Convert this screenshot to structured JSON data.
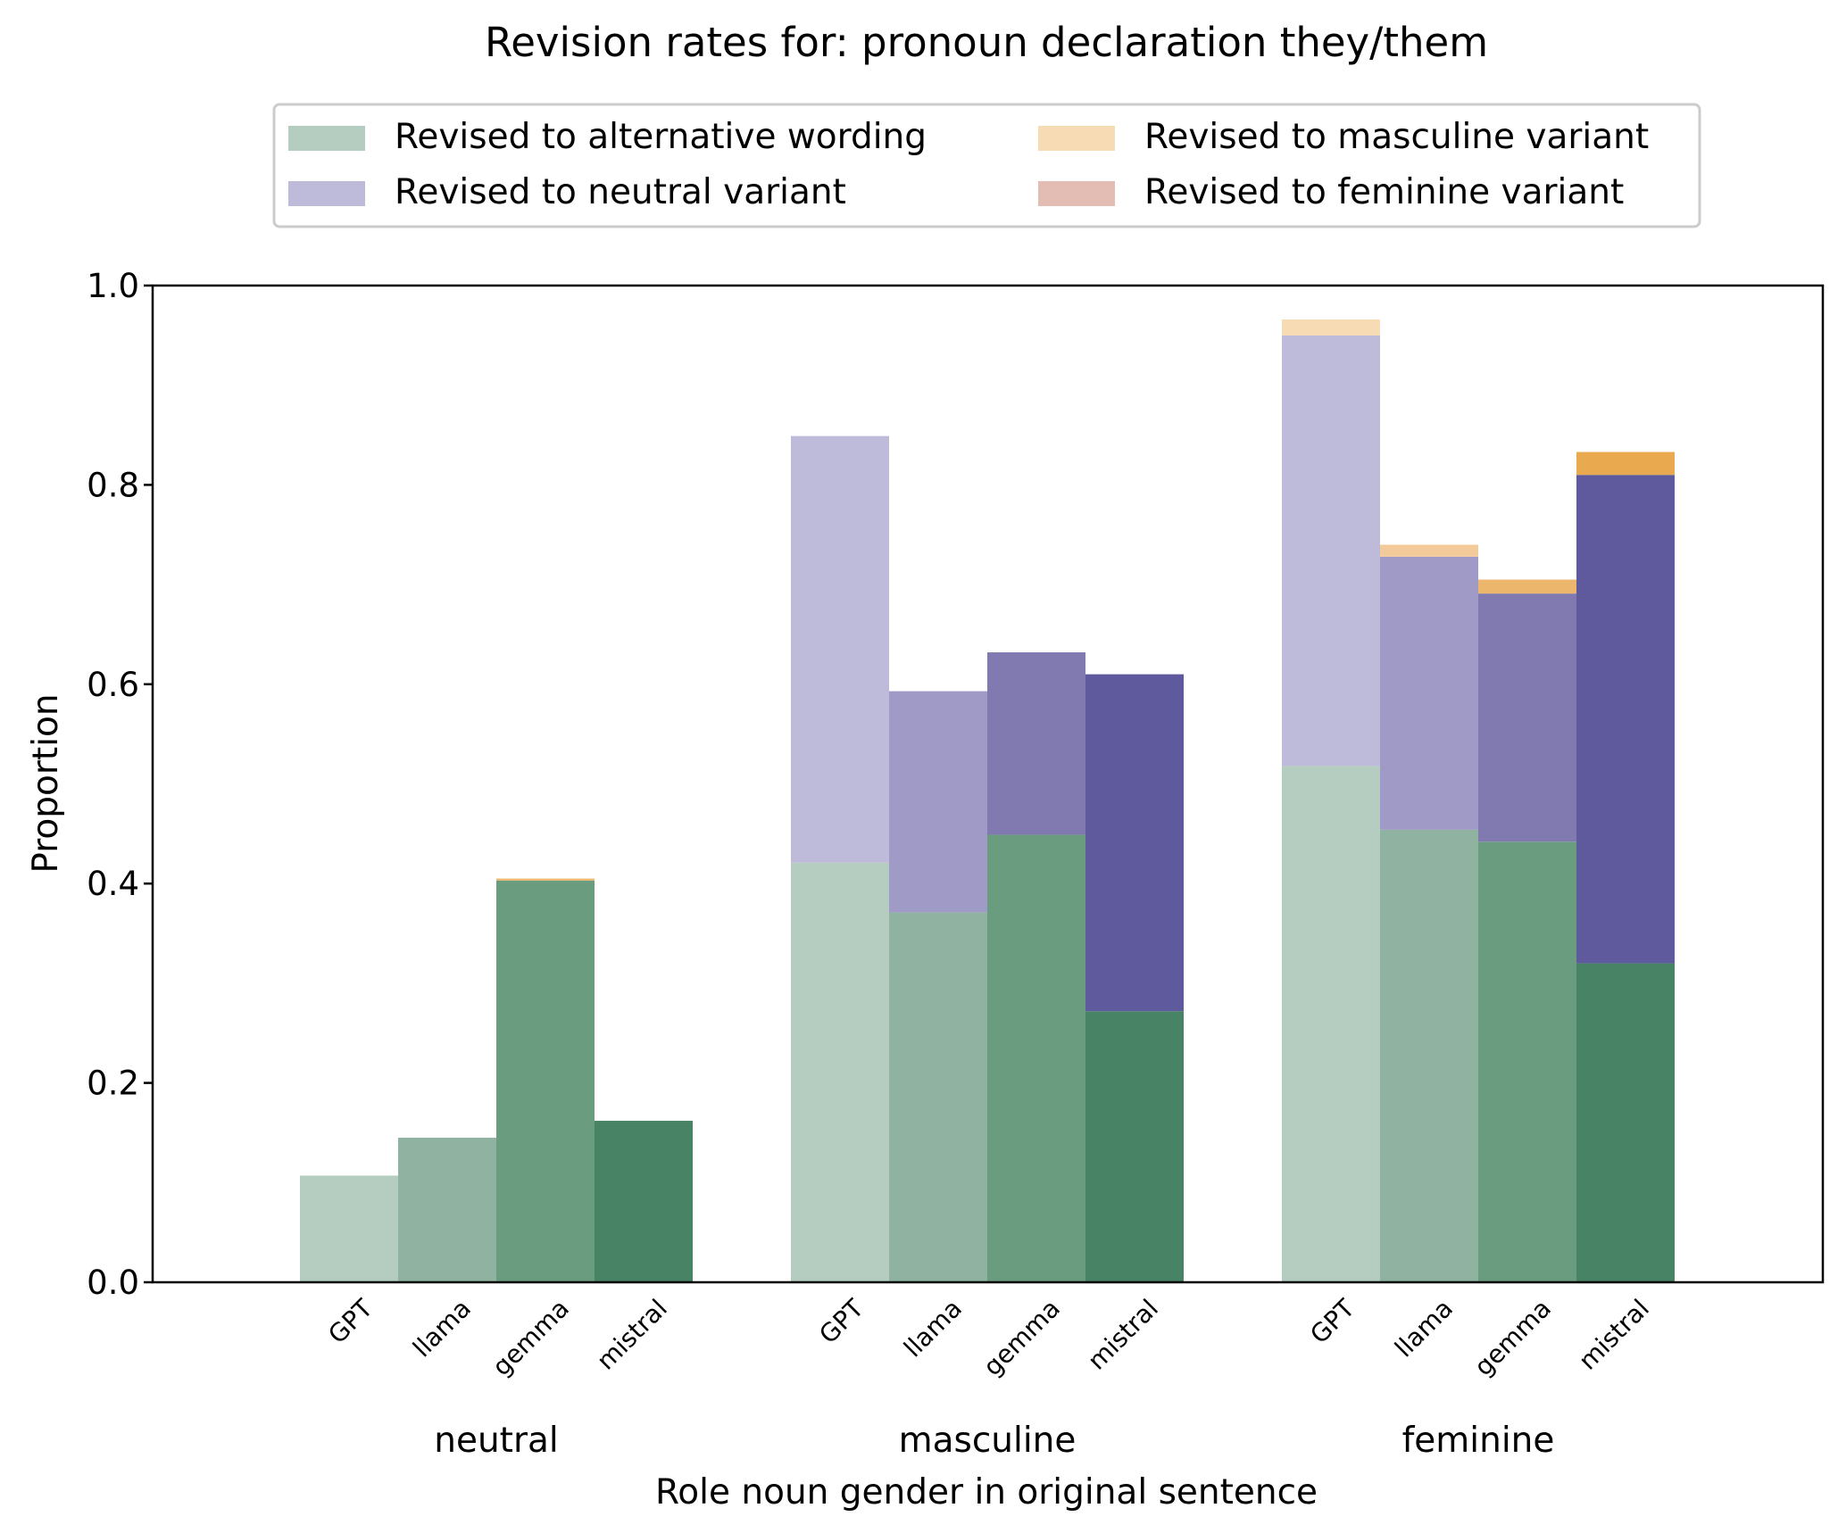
{
  "chart_data": {
    "type": "bar",
    "title": "Revision rates for: pronoun declaration they/them",
    "xlabel": "Role noun gender in original sentence",
    "ylabel": "Proportion",
    "ylim": [
      0,
      1
    ],
    "yticks": [
      "0.0",
      "0.2",
      "0.4",
      "0.6",
      "0.8",
      "1.0"
    ],
    "grid": false,
    "stacked": true,
    "legend_placement": "top-center",
    "groups": [
      "neutral",
      "masculine",
      "feminine"
    ],
    "models": [
      "GPT",
      "llama",
      "gemma",
      "mistral"
    ],
    "legend": [
      {
        "name": "Revised to alternative wording",
        "color": "#b5cdc0"
      },
      {
        "name": "Revised to neutral variant",
        "color": "#bebad9"
      },
      {
        "name": "Revised to masculine variant",
        "color": "#f7dbb5"
      },
      {
        "name": "Revised to feminine variant",
        "color": "#e3bcb4"
      }
    ],
    "model_colors": {
      "GPT": {
        "alternative": "#b5cdc0",
        "neutral": "#bebad9",
        "masculine": "#f7dbb5",
        "feminine": "#e3bcb4"
      },
      "llama": {
        "alternative": "#8fb3a0",
        "neutral": "#9f9bc6",
        "masculine": "#f3cb9a",
        "feminine": "#d9a597"
      },
      "gemma": {
        "alternative": "#6a9c80",
        "neutral": "#807ab0",
        "masculine": "#ecb66c",
        "feminine": "#cd8b7a"
      },
      "mistral": {
        "alternative": "#488366",
        "neutral": "#5f599e",
        "masculine": "#e8a94f",
        "feminine": "#c06f5c"
      }
    },
    "series": [
      {
        "name": "Revised to alternative wording",
        "key": "alternative",
        "values": {
          "neutral": [
            0.107,
            0.145,
            0.403,
            0.162
          ],
          "masculine": [
            0.421,
            0.371,
            0.449,
            0.272
          ],
          "feminine": [
            0.518,
            0.454,
            0.442,
            0.32
          ]
        }
      },
      {
        "name": "Revised to neutral variant",
        "key": "neutral",
        "values": {
          "neutral": [
            0.0,
            0.0,
            0.0,
            0.0
          ],
          "masculine": [
            0.428,
            0.222,
            0.183,
            0.338
          ],
          "feminine": [
            0.432,
            0.274,
            0.249,
            0.49
          ]
        }
      },
      {
        "name": "Revised to masculine variant",
        "key": "masculine",
        "values": {
          "neutral": [
            0.0,
            0.0,
            0.002,
            0.0
          ],
          "masculine": [
            0.0,
            0.0,
            0.0,
            0.0
          ],
          "feminine": [
            0.016,
            0.012,
            0.014,
            0.023
          ]
        }
      },
      {
        "name": "Revised to feminine variant",
        "key": "feminine",
        "values": {
          "neutral": [
            0.0,
            0.0,
            0.0,
            0.0
          ],
          "masculine": [
            0.0,
            0.0,
            0.0,
            0.0
          ],
          "feminine": [
            0.0,
            0.0,
            0.0,
            0.0
          ]
        }
      }
    ]
  }
}
